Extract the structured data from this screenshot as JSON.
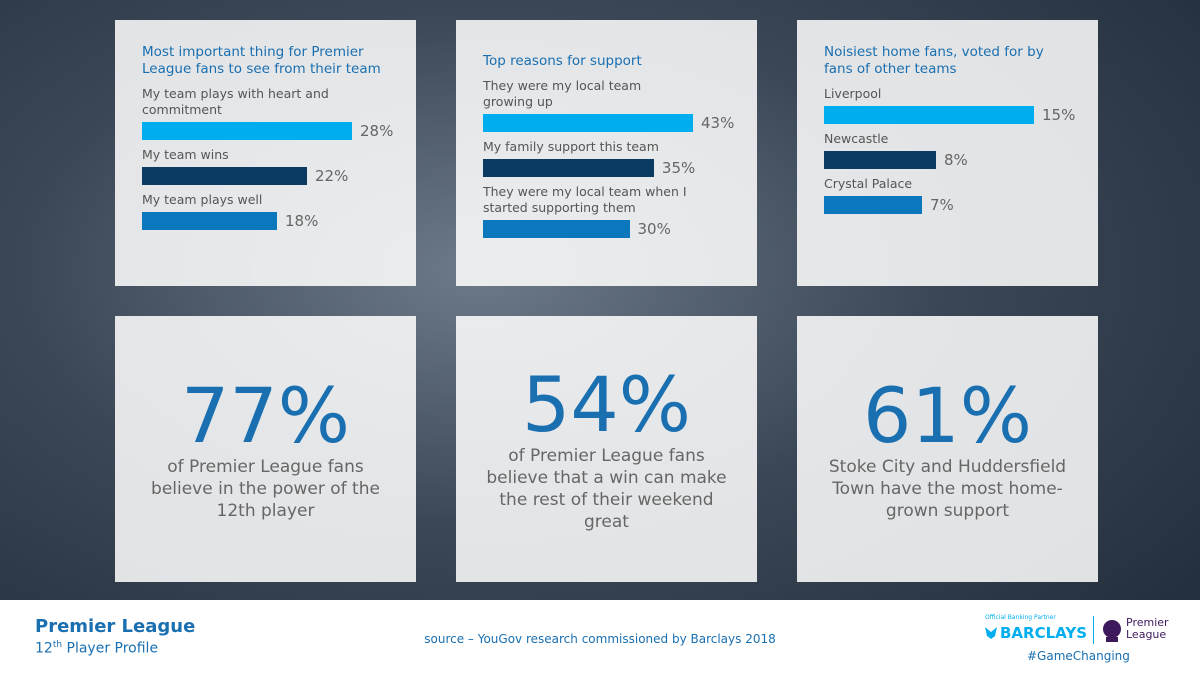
{
  "chart_data": [
    {
      "type": "bar",
      "title": "Most important thing for Premier League fans to see from their team",
      "categories": [
        "My team plays with heart and commitment",
        "My team wins",
        "My team plays well"
      ],
      "values": [
        28,
        22,
        18
      ],
      "value_labels": [
        "28%",
        "22%",
        "18%"
      ],
      "colors": [
        "#00aeef",
        "#0b3a62",
        "#0b77bd"
      ]
    },
    {
      "type": "bar",
      "title": "Top reasons for support",
      "categories": [
        "They were my local team growing up",
        "My family support this team",
        "They were my local team when I started supporting them"
      ],
      "values": [
        43,
        35,
        30
      ],
      "value_labels": [
        "43%",
        "35%",
        "30%"
      ],
      "colors": [
        "#00aeef",
        "#0b3a62",
        "#0b77bd"
      ]
    },
    {
      "type": "bar",
      "title": "Noisiest home fans, voted for by fans of other teams",
      "categories": [
        "Liverpool",
        "Newcastle",
        "Crystal Palace"
      ],
      "values": [
        15,
        8,
        7
      ],
      "value_labels": [
        "15%",
        "8%",
        "7%"
      ],
      "colors": [
        "#00aeef",
        "#0b3a62",
        "#0b77bd"
      ]
    }
  ],
  "stats": [
    {
      "value": "77%",
      "text": "of Premier League fans believe in the power of the 12th player"
    },
    {
      "value": "54%",
      "text": "of Premier League fans believe that a win can make the rest of their weekend great"
    },
    {
      "value": "61%",
      "text": "Stoke City and Huddersfield Town have the most home-grown support"
    }
  ],
  "footer": {
    "title": "Premier League",
    "subtitle_number": "12",
    "subtitle_suffix": "th",
    "subtitle_rest": "Player Profile",
    "source": "source – YouGov research commissioned by Barclays 2018",
    "partner": "Official Banking Partner",
    "sponsor": "BARCLAYS",
    "league_line1": "Premier",
    "league_line2": "League",
    "hashtag": "#GameChanging"
  }
}
